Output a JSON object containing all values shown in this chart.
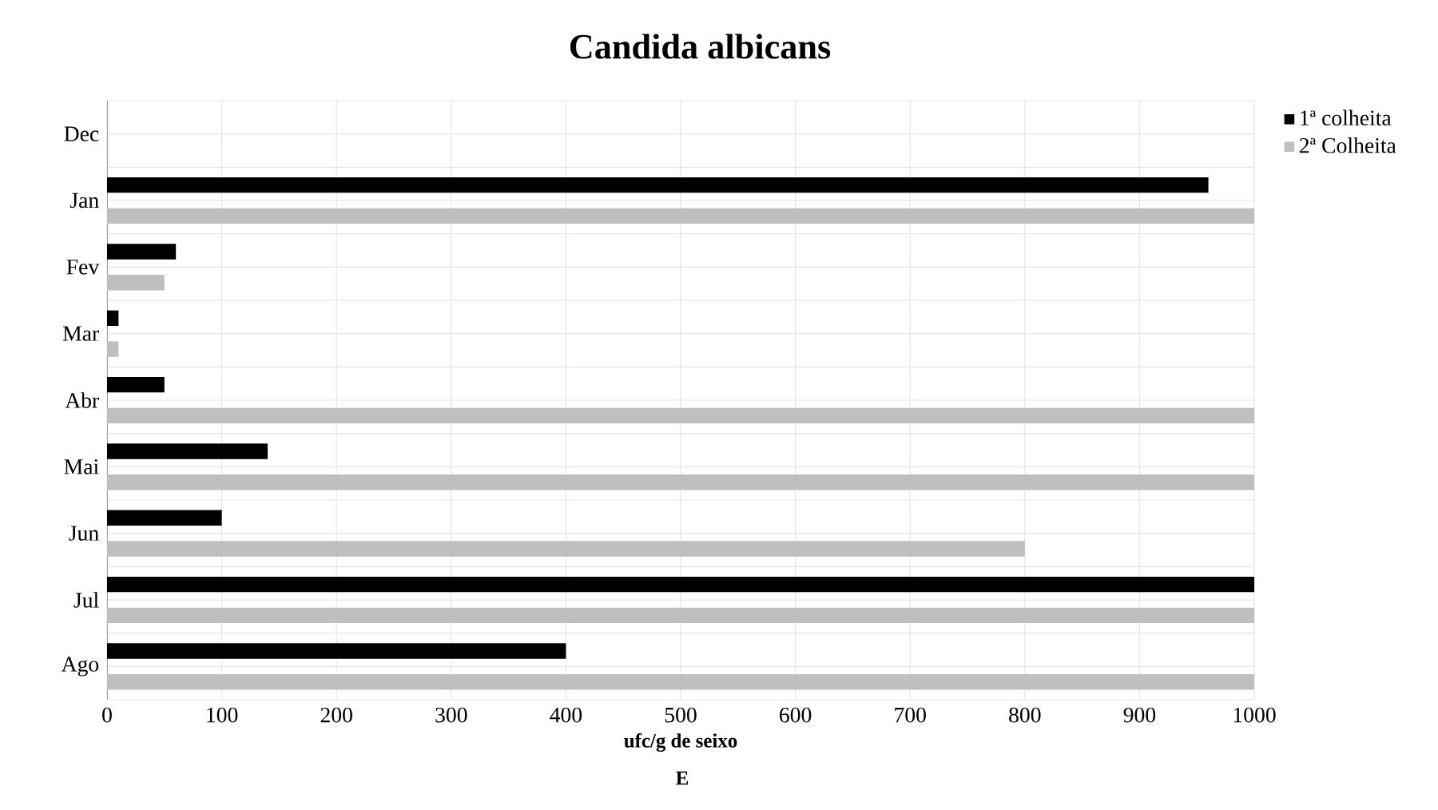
{
  "chart_data": {
    "type": "bar",
    "orientation": "horizontal",
    "title": "Candida albicans",
    "xlabel": "ufc/g de seixo",
    "annotations": [
      "E"
    ],
    "categories": [
      "Dec",
      "Jan",
      "Fev",
      "Mar",
      "Abr",
      "Mai",
      "Jun",
      "Jul",
      "Ago"
    ],
    "series": [
      {
        "name": "1ª colheita",
        "color": "#000000",
        "values": [
          0,
          960,
          60,
          10,
          50,
          140,
          100,
          1000,
          400
        ]
      },
      {
        "name": "2ª Colheita",
        "color": "#bfbfbf",
        "values": [
          0,
          1000,
          50,
          10,
          1000,
          1000,
          800,
          1000,
          1000
        ]
      }
    ],
    "xlim": [
      0,
      1000
    ],
    "xticks": [
      0,
      100,
      200,
      300,
      400,
      500,
      600,
      700,
      800,
      900,
      1000
    ],
    "grid": true,
    "legend": "top right"
  }
}
